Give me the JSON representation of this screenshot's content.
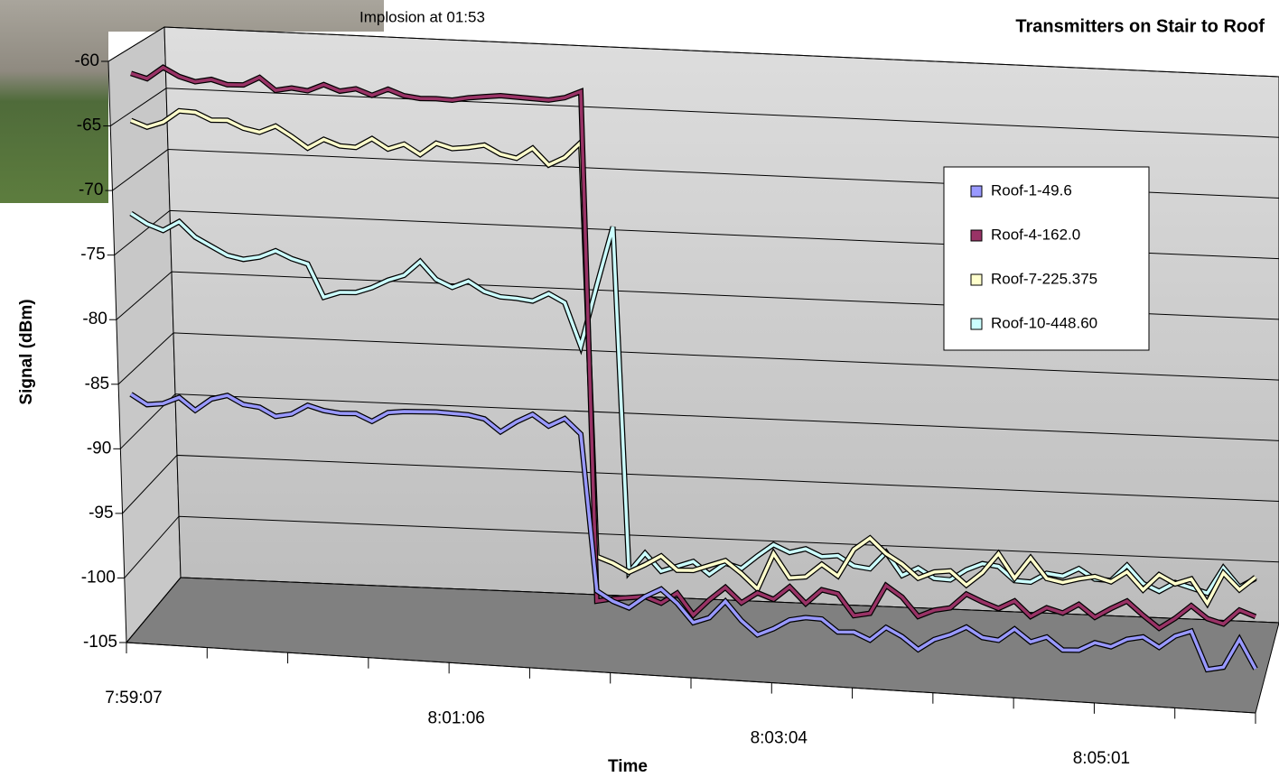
{
  "chart_data": {
    "type": "line",
    "title": "Transmitters on Stair to Roof",
    "annotation": "Implosion at 01:53",
    "x_label": "Time",
    "y_label": "Signal (dBm)",
    "ylim": [
      -105,
      -60
    ],
    "yticks": [
      -105,
      -100,
      -95,
      -90,
      -85,
      -80,
      -75,
      -70,
      -65,
      -60
    ],
    "grid": true,
    "categories": [
      "7:59:07",
      null,
      null,
      null,
      null,
      null,
      null,
      null,
      null,
      null,
      null,
      null,
      null,
      null,
      null,
      null,
      null,
      null,
      null,
      null,
      "8:01:06",
      null,
      null,
      null,
      null,
      null,
      null,
      null,
      null,
      null,
      null,
      null,
      null,
      null,
      null,
      null,
      null,
      null,
      null,
      null,
      "8:03:04",
      null,
      null,
      null,
      null,
      null,
      null,
      null,
      null,
      null,
      null,
      null,
      null,
      null,
      null,
      null,
      null,
      null,
      null,
      null,
      "8:05:01",
      null,
      null,
      null,
      null,
      null,
      null,
      null,
      null,
      null,
      null
    ],
    "series": [
      {
        "name": "Roof-1-49.6",
        "color": "#9999ff",
        "values": [
          -86.0,
          -86.8,
          -86.7,
          -86.2,
          -87.2,
          -86.3,
          -86.0,
          -86.7,
          -86.9,
          -87.6,
          -87.4,
          -86.7,
          -87.1,
          -87.3,
          -87.3,
          -87.9,
          -87.2,
          -87.1,
          -87.1,
          -87.1,
          -87.2,
          -87.3,
          -87.6,
          -88.6,
          -87.8,
          -87.2,
          -88.1,
          -87.5,
          -88.7,
          -101.0,
          -101.8,
          -102.3,
          -101.4,
          -100.8,
          -101.9,
          -103.4,
          -103.0,
          -101.7,
          -103.2,
          -104.3,
          -103.8,
          -103.1,
          -102.9,
          -103.0,
          -104.0,
          -104.0,
          -104.6,
          -103.6,
          -104.3,
          -105.3,
          -104.5,
          -104.1,
          -103.5,
          -104.3,
          -104.5,
          -103.6,
          -104.6,
          -104.2,
          -105.2,
          -105.2,
          -104.6,
          -104.9,
          -104.3,
          -104.1,
          -104.9,
          -104.0,
          -103.6,
          -106.6,
          -106.4,
          -104.2,
          -106.5
        ]
      },
      {
        "name": "Roof-4-162.0",
        "color": "#993366",
        "values": [
          -60.8,
          -61.2,
          -60.3,
          -61.0,
          -61.4,
          -61.2,
          -61.6,
          -61.6,
          -61.0,
          -62.0,
          -61.8,
          -62.0,
          -61.5,
          -62.0,
          -61.8,
          -62.3,
          -61.8,
          -62.3,
          -62.5,
          -62.5,
          -62.6,
          -62.4,
          -62.3,
          -62.2,
          -62.3,
          -62.4,
          -62.5,
          -62.3,
          -61.8,
          -101.8,
          -101.6,
          -101.5,
          -101.4,
          -101.9,
          -101.1,
          -102.8,
          -101.6,
          -100.6,
          -101.8,
          -101.0,
          -101.5,
          -100.5,
          -101.8,
          -100.7,
          -101.0,
          -102.7,
          -102.5,
          -100.3,
          -101.2,
          -102.7,
          -102.2,
          -102.0,
          -100.9,
          -101.5,
          -102.0,
          -101.4,
          -102.6,
          -101.9,
          -102.3,
          -101.6,
          -102.6,
          -101.9,
          -101.3,
          -102.4,
          -103.4,
          -102.6,
          -101.6,
          -102.6,
          -103.0,
          -101.9,
          -102.4
        ]
      },
      {
        "name": "Roof-7-225.375",
        "color": "#ffffcc",
        "values": [
          -64.5,
          -65.0,
          -64.6,
          -63.7,
          -63.8,
          -64.4,
          -64.4,
          -65.0,
          -65.3,
          -64.8,
          -65.6,
          -66.5,
          -65.8,
          -66.3,
          -66.4,
          -65.7,
          -66.5,
          -66.1,
          -66.9,
          -66.0,
          -66.4,
          -66.3,
          -66.1,
          -66.8,
          -67.1,
          -66.3,
          -67.6,
          -67.0,
          -65.8,
          -98.3,
          -98.8,
          -99.5,
          -98.9,
          -98.2,
          -99.3,
          -99.3,
          -98.9,
          -98.5,
          -99.5,
          -100.7,
          -97.9,
          -99.8,
          -99.7,
          -98.7,
          -99.6,
          -97.5,
          -96.6,
          -97.8,
          -98.6,
          -99.7,
          -99.2,
          -99.1,
          -100.2,
          -99.2,
          -97.7,
          -99.6,
          -98.0,
          -99.6,
          -99.9,
          -99.6,
          -99.4,
          -99.8,
          -99.0,
          -100.4,
          -99.2,
          -99.9,
          -99.5,
          -101.4,
          -99.0,
          -100.3,
          -99.3
        ]
      },
      {
        "name": "Roof-10-448.60",
        "color": "#ccffff",
        "values": [
          -71.8,
          -72.6,
          -73.1,
          -72.4,
          -73.6,
          -74.3,
          -75.0,
          -75.3,
          -75.1,
          -74.6,
          -75.2,
          -75.6,
          -78.2,
          -77.8,
          -77.8,
          -77.4,
          -76.8,
          -76.4,
          -75.3,
          -76.7,
          -77.3,
          -76.8,
          -77.6,
          -78.0,
          -78.1,
          -78.3,
          -77.7,
          -78.4,
          -81.8,
          -77.0,
          -72.4,
          -99.5,
          -98.0,
          -99.4,
          -99.0,
          -98.6,
          -99.6,
          -98.7,
          -99.1,
          -98.1,
          -97.2,
          -97.8,
          -97.5,
          -98.1,
          -98.0,
          -98.8,
          -99.0,
          -97.7,
          -99.5,
          -98.9,
          -99.7,
          -99.8,
          -99.0,
          -98.5,
          -98.7,
          -99.8,
          -99.9,
          -99.2,
          -99.4,
          -98.8,
          -99.6,
          -99.7,
          -98.5,
          -99.9,
          -100.5,
          -99.8,
          -100.2,
          -100.6,
          -98.6,
          -100.1,
          -99.4
        ]
      }
    ]
  }
}
